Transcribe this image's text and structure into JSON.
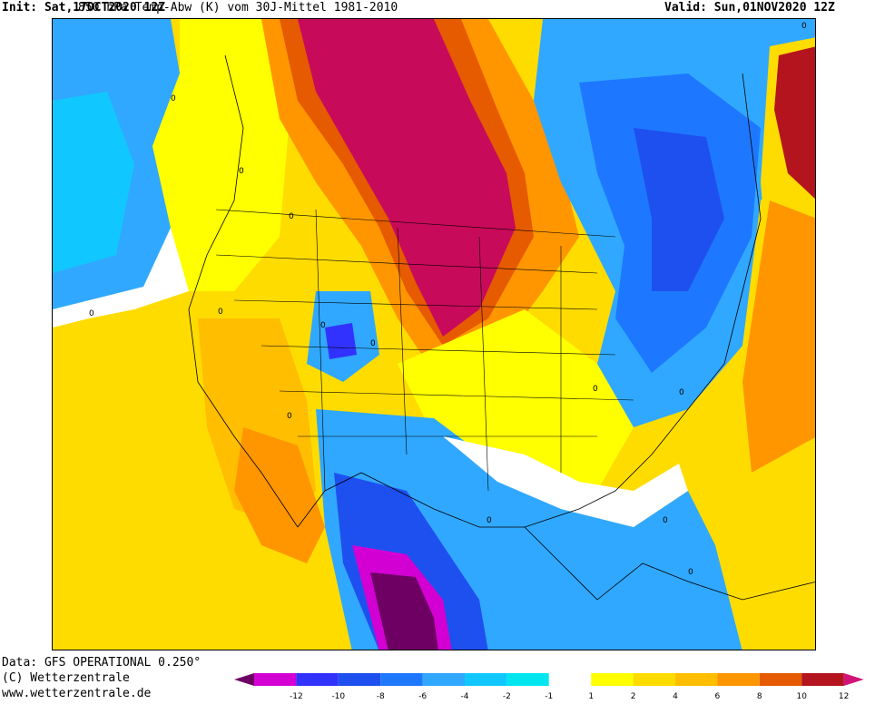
{
  "header": {
    "init": "Init: Sat,17OCT2020 12Z",
    "title": "850 hPa Temp-Abw (K) vom 30J-Mittel 1981-2010",
    "valid": "Valid: Sun,01NOV2020 12Z"
  },
  "credits": {
    "data": "Data: GFS OPERATIONAL 0.250°",
    "copyright": "(C) Wetterzentrale",
    "url": "www.wetterzentrale.de"
  },
  "legend": {
    "ticks": [
      "-12",
      "-10",
      "-8",
      "-6",
      "-4",
      "-2",
      "-1",
      "1",
      "2",
      "4",
      "6",
      "8",
      "10",
      "12"
    ],
    "colors": [
      "#d200d2",
      "#3232ff",
      "#1e50f0",
      "#1e78ff",
      "#30a8ff",
      "#10c8ff",
      "#00e6f0",
      "#ffffff",
      "#ffff00",
      "#ffdc00",
      "#ffbe00",
      "#ff9600",
      "#e65a00",
      "#b4141e"
    ],
    "end_colors": {
      "low": "#6e0064",
      "high": "#d21478"
    }
  },
  "map": {
    "contour_labels": [
      "0",
      "0",
      "0",
      "0",
      "0",
      "0",
      "0",
      "0",
      "0",
      "0",
      "0",
      "0",
      "0",
      "0"
    ]
  }
}
